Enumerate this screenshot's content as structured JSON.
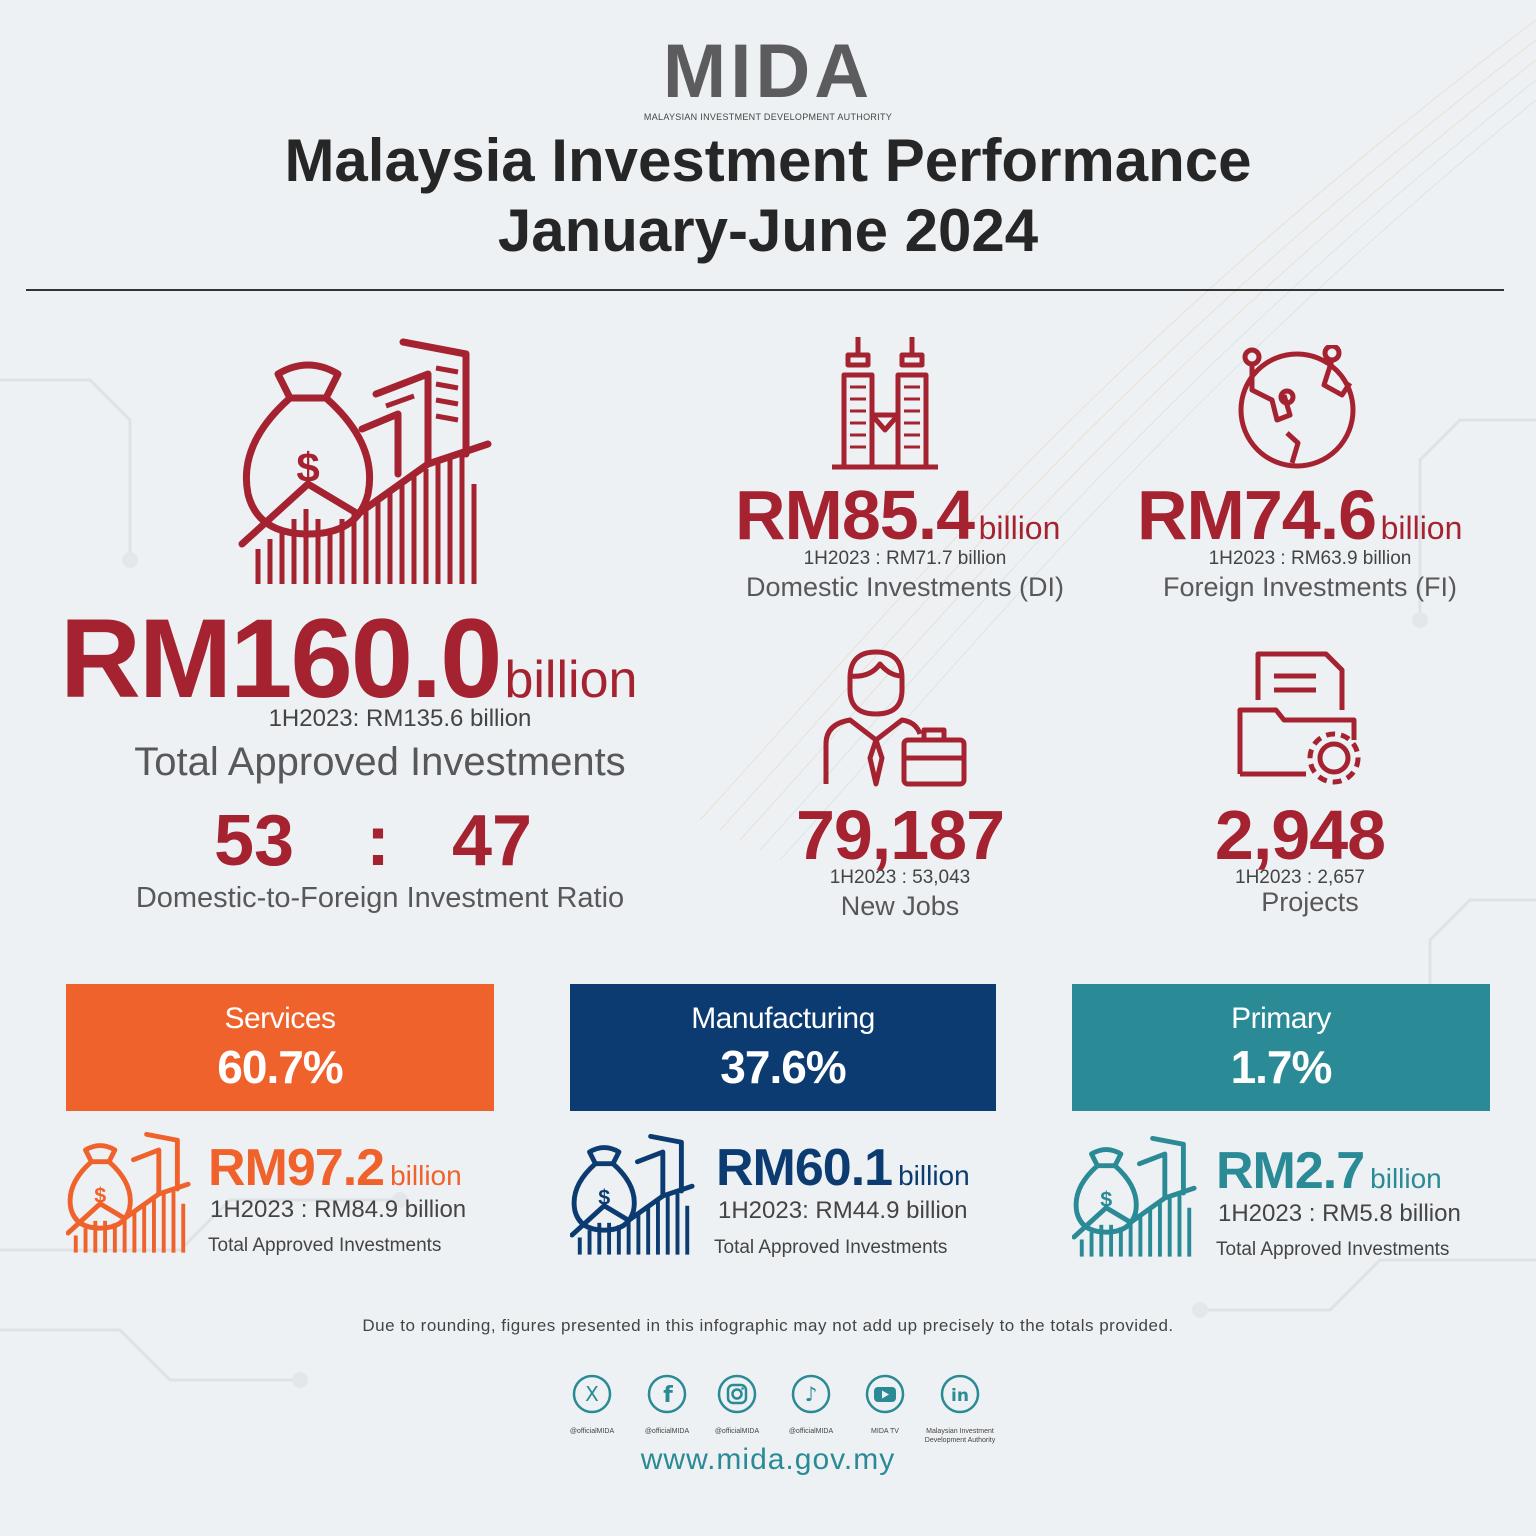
{
  "colors": {
    "accent_red": "#a52231",
    "services": "#f0622b",
    "manufacturing": "#0b3b70",
    "primary": "#2a8a95",
    "text_dark": "#262626"
  },
  "header": {
    "logo_text": "MIDA",
    "logo_subtitle": "MALAYSIAN INVESTMENT DEVELOPMENT AUTHORITY",
    "title_line1": "Malaysia Investment Performance",
    "title_line2": "January-June 2024"
  },
  "total": {
    "icon": "money-bag-growth-icon",
    "value": "RM160.0",
    "unit": "billion",
    "comparison": "1H2023: RM135.6 billion",
    "label": "Total Approved Investments",
    "ratio_domestic": "53",
    "ratio_separator": ":",
    "ratio_foreign": "47",
    "ratio_label": "Domestic-to-Foreign Investment Ratio"
  },
  "domestic": {
    "icon": "twin-towers-icon",
    "value": "RM85.4",
    "unit": "billion",
    "comparison": "1H2023 : RM71.7 billion",
    "label": "Domestic Investments (DI)"
  },
  "foreign": {
    "icon": "globe-network-icon",
    "value": "RM74.6",
    "unit": "billion",
    "comparison": "1H2023 : RM63.9 billion",
    "label": "Foreign Investments (FI)"
  },
  "jobs": {
    "icon": "businessman-briefcase-icon",
    "value": "79,187",
    "comparison": "1H2023 : 53,043",
    "label": "New Jobs"
  },
  "projects": {
    "icon": "folder-gear-icon",
    "value": "2,948",
    "comparison": "1H2023 : 2,657",
    "label": "Projects"
  },
  "sectors": [
    {
      "name": "Services",
      "percent": "60.7%",
      "value": "RM97.2",
      "unit": "billion",
      "comparison": "1H2023 : RM84.9 billion",
      "label": "Total Approved Investments"
    },
    {
      "name": "Manufacturing",
      "percent": "37.6%",
      "value": "RM60.1",
      "unit": "billion",
      "comparison": "1H2023: RM44.9 billion",
      "label": "Total Approved Investments"
    },
    {
      "name": "Primary",
      "percent": "1.7%",
      "value": "RM2.7",
      "unit": "billion",
      "comparison": "1H2023 : RM5.8 billion",
      "label": "Total Approved Investments"
    }
  ],
  "disclaimer": "Due to rounding, figures presented in this infographic may not add up precisely to the totals provided.",
  "social": [
    {
      "icon": "x-icon",
      "glyph": "X",
      "handle": "@officialMIDA"
    },
    {
      "icon": "facebook-icon",
      "glyph": "f",
      "handle": "@officialMIDA"
    },
    {
      "icon": "instagram-icon",
      "glyph": "",
      "handle": "@officialMIDA"
    },
    {
      "icon": "tiktok-icon",
      "glyph": "♪",
      "handle": "@officialMIDA"
    },
    {
      "icon": "youtube-icon",
      "glyph": "",
      "handle": "MIDA TV"
    },
    {
      "icon": "linkedin-icon",
      "glyph": "in",
      "handle": "Malaysian Investment Development Authority"
    }
  ],
  "website": "www.mida.gov.my"
}
